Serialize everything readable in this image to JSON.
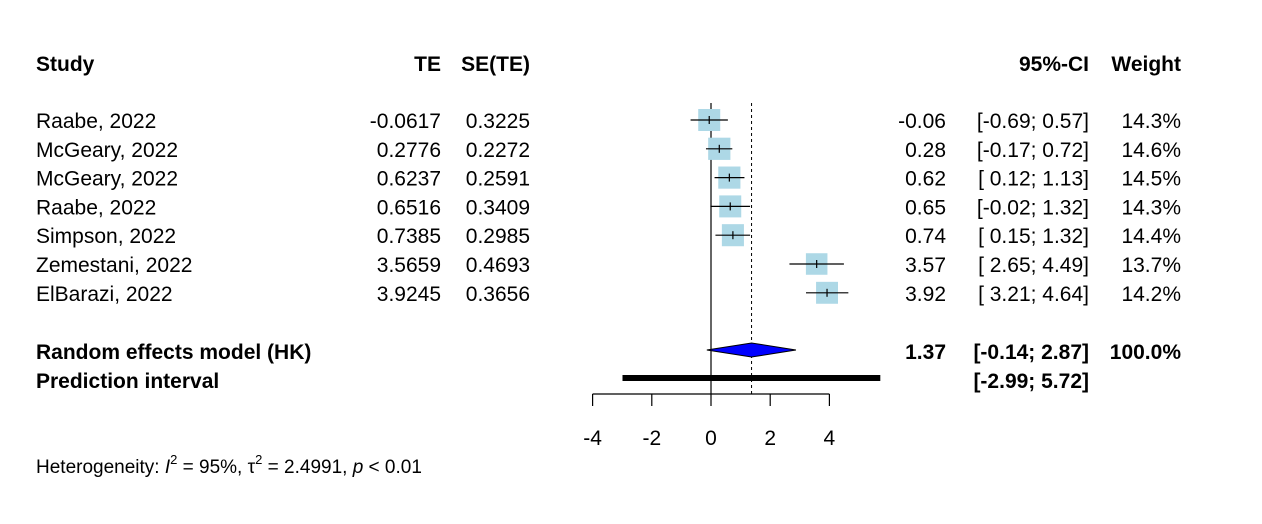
{
  "chart_data": {
    "type": "forest",
    "headers": {
      "study": "Study",
      "te": "TE",
      "se": "SE(TE)",
      "ci": "95%-CI",
      "weight": "Weight"
    },
    "studies": [
      {
        "study": "Raabe, 2022",
        "te_text": "-0.0617",
        "se_text": "0.3225",
        "est_text": "-0.06",
        "ci_text": "[-0.69; 0.57]",
        "weight_text": "14.3%",
        "est": -0.06,
        "lower": -0.69,
        "upper": 0.57,
        "weight": 14.3
      },
      {
        "study": "McGeary, 2022",
        "te_text": "0.2776",
        "se_text": "0.2272",
        "est_text": "0.28",
        "ci_text": "[-0.17; 0.72]",
        "weight_text": "14.6%",
        "est": 0.28,
        "lower": -0.17,
        "upper": 0.72,
        "weight": 14.6
      },
      {
        "study": "McGeary, 2022",
        "te_text": "0.6237",
        "se_text": "0.2591",
        "est_text": "0.62",
        "ci_text": "[ 0.12; 1.13]",
        "weight_text": "14.5%",
        "est": 0.62,
        "lower": 0.12,
        "upper": 1.13,
        "weight": 14.5
      },
      {
        "study": "Raabe, 2022",
        "te_text": "0.6516",
        "se_text": "0.3409",
        "est_text": "0.65",
        "ci_text": "[-0.02; 1.32]",
        "weight_text": "14.3%",
        "est": 0.65,
        "lower": -0.02,
        "upper": 1.32,
        "weight": 14.3
      },
      {
        "study": "Simpson, 2022",
        "te_text": "0.7385",
        "se_text": "0.2985",
        "est_text": "0.74",
        "ci_text": "[ 0.15; 1.32]",
        "weight_text": "14.4%",
        "est": 0.74,
        "lower": 0.15,
        "upper": 1.32,
        "weight": 14.4
      },
      {
        "study": "Zemestani, 2022",
        "te_text": "3.5659",
        "se_text": "0.4693",
        "est_text": "3.57",
        "ci_text": "[ 2.65; 4.49]",
        "weight_text": "13.7%",
        "est": 3.57,
        "lower": 2.65,
        "upper": 4.49,
        "weight": 13.7
      },
      {
        "study": "ElBarazi, 2022",
        "te_text": "3.9245",
        "se_text": "0.3656",
        "est_text": "3.92",
        "ci_text": "[ 3.21; 4.64]",
        "weight_text": "14.2%",
        "est": 3.92,
        "lower": 3.21,
        "upper": 4.64,
        "weight": 14.2
      }
    ],
    "summary": {
      "label": "Random effects model (HK)",
      "est_text": "1.37",
      "ci_text": "[-0.14; 2.87]",
      "weight_text": "100.0%",
      "est": 1.37,
      "lower": -0.14,
      "upper": 2.87
    },
    "prediction": {
      "label": "Prediction interval",
      "ci_text": "[-2.99; 5.72]",
      "lower": -2.99,
      "upper": 5.72
    },
    "heterogeneity": {
      "prefix": "Heterogeneity: ",
      "i2_symbol": "I",
      "i2_value": " = 95%, ",
      "tau_symbol": "τ",
      "tau_value": " = 2.4991, ",
      "p_symbol": "p",
      "p_value": " < 0.01",
      "sup": "2"
    },
    "x_axis": {
      "ticks": [
        -4,
        -2,
        0,
        2,
        4
      ],
      "tick_labels": [
        "-4",
        "-2",
        "0",
        "2",
        "4"
      ],
      "range": [
        -4,
        4
      ]
    },
    "colors": {
      "square": "#add8e6",
      "diamond": "#0000ff",
      "line": "#000000"
    }
  }
}
